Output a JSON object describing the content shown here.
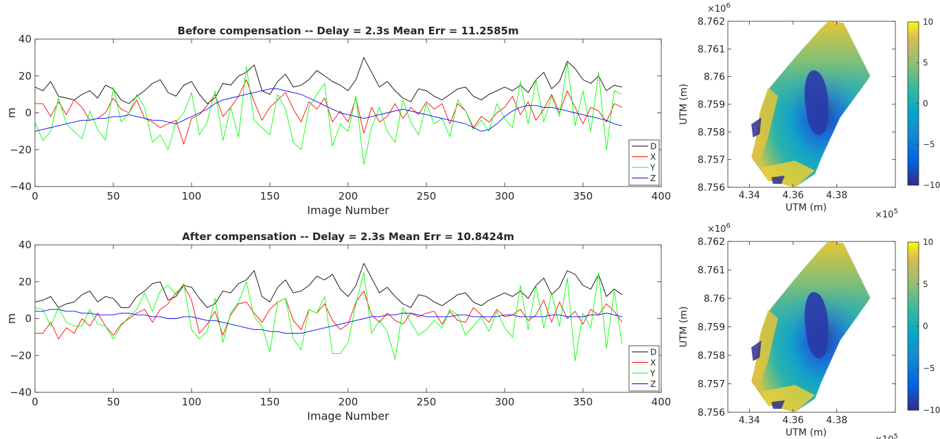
{
  "chart_data": [
    {
      "type": "line",
      "title": "Before compensation -- Delay = 2.3s Mean Err = 11.2585m",
      "xlabel": "Image Number",
      "ylabel": "m",
      "xlim": [
        0,
        400
      ],
      "ylim": [
        -40,
        40
      ],
      "xticks": [
        0,
        50,
        100,
        150,
        200,
        250,
        300,
        350,
        400
      ],
      "yticks": [
        -40,
        -20,
        0,
        20,
        40
      ],
      "legend_position": "bottom-right",
      "grid": false,
      "x": [
        0,
        5,
        10,
        15,
        20,
        25,
        30,
        35,
        40,
        45,
        50,
        55,
        60,
        65,
        70,
        75,
        80,
        85,
        90,
        95,
        100,
        105,
        110,
        115,
        120,
        125,
        130,
        135,
        140,
        145,
        150,
        155,
        160,
        165,
        170,
        175,
        180,
        185,
        190,
        195,
        200,
        205,
        210,
        215,
        220,
        225,
        230,
        235,
        240,
        245,
        250,
        255,
        260,
        265,
        270,
        275,
        280,
        285,
        290,
        295,
        300,
        305,
        310,
        315,
        320,
        325,
        330,
        335,
        340,
        345,
        350,
        355,
        360,
        365,
        370,
        375
      ],
      "series": [
        {
          "name": "D",
          "color": "#000000",
          "values": [
            14,
            12,
            17,
            9,
            8,
            7,
            10,
            12,
            8,
            15,
            13,
            7,
            5,
            9,
            12,
            16,
            18,
            11,
            9,
            15,
            17,
            10,
            5,
            8,
            16,
            15,
            20,
            22,
            26,
            12,
            10,
            17,
            21,
            14,
            15,
            18,
            23,
            20,
            17,
            15,
            12,
            18,
            30,
            22,
            14,
            17,
            12,
            8,
            6,
            13,
            12,
            9,
            7,
            10,
            13,
            14,
            9,
            7,
            10,
            12,
            14,
            12,
            15,
            11,
            18,
            22,
            13,
            17,
            28,
            24,
            18,
            16,
            20,
            12,
            15,
            14
          ]
        },
        {
          "name": "X",
          "color": "#ff0000",
          "values": [
            5,
            5,
            -2,
            6,
            -1,
            7,
            3,
            -4,
            -3,
            0,
            8,
            2,
            0,
            7,
            -3,
            -5,
            -8,
            -6,
            -4,
            -17,
            -3,
            -1,
            4,
            10,
            -2,
            3,
            9,
            18,
            6,
            -4,
            3,
            7,
            11,
            2,
            -5,
            6,
            2,
            8,
            -5,
            1,
            -5,
            8,
            -11,
            3,
            -5,
            -2,
            5,
            -3,
            3,
            -1,
            6,
            2,
            5,
            -6,
            5,
            1,
            -8,
            -2,
            -5,
            0,
            3,
            9,
            -1,
            6,
            -4,
            2,
            10,
            0,
            12,
            3,
            -6,
            3,
            1,
            -5,
            5,
            3
          ]
        },
        {
          "name": "Y",
          "color": "#00ff00",
          "values": [
            -5,
            -15,
            -10,
            8,
            -6,
            -10,
            -14,
            1,
            -9,
            -15,
            14,
            -5,
            0,
            10,
            3,
            -16,
            -12,
            -20,
            -5,
            0,
            11,
            -12,
            -5,
            12,
            -15,
            3,
            -13,
            25,
            -4,
            -8,
            -12,
            10,
            2,
            -16,
            -20,
            3,
            10,
            16,
            -18,
            -6,
            -10,
            9,
            -28,
            -8,
            3,
            -10,
            -16,
            7,
            -5,
            -12,
            5,
            -6,
            -3,
            -13,
            7,
            1,
            -9,
            -4,
            -10,
            5,
            -3,
            -8,
            17,
            -6,
            18,
            -5,
            9,
            -2,
            27,
            -7,
            12,
            -10,
            22,
            -20,
            12,
            10
          ]
        },
        {
          "name": "Z",
          "color": "#0000ff",
          "values": [
            -10,
            -9,
            -8,
            -7,
            -6,
            -5,
            -4,
            -4,
            -3,
            -3,
            -2,
            -2,
            -1,
            -2,
            -3,
            -4,
            -4,
            -5,
            -6,
            -4,
            -2,
            0,
            2,
            5,
            7,
            8,
            9,
            10,
            11,
            12,
            13,
            13,
            12,
            11,
            10,
            8,
            6,
            4,
            2,
            0,
            -1,
            -2,
            -3,
            -2,
            -1,
            0,
            1,
            2,
            1,
            0,
            -1,
            -2,
            -3,
            -4,
            -5,
            -6,
            -8,
            -10,
            -9,
            -6,
            -2,
            1,
            3,
            4,
            4,
            3,
            3,
            2,
            1,
            0,
            -1,
            -2,
            -3,
            -4,
            -6,
            -7
          ]
        }
      ]
    },
    {
      "type": "line",
      "title": "After compensation -- Delay = 2.3s Mean Err = 10.8424m",
      "xlabel": "Image Number",
      "ylabel": "m",
      "xlim": [
        0,
        400
      ],
      "ylim": [
        -40,
        40
      ],
      "xticks": [
        0,
        50,
        100,
        150,
        200,
        250,
        300,
        350,
        400
      ],
      "yticks": [
        -40,
        -20,
        0,
        20,
        40
      ],
      "legend_position": "bottom-right",
      "grid": false,
      "x": [
        0,
        5,
        10,
        15,
        20,
        25,
        30,
        35,
        40,
        45,
        50,
        55,
        60,
        65,
        70,
        75,
        80,
        85,
        90,
        95,
        100,
        105,
        110,
        115,
        120,
        125,
        130,
        135,
        140,
        145,
        150,
        155,
        160,
        165,
        170,
        175,
        180,
        185,
        190,
        195,
        200,
        205,
        210,
        215,
        220,
        225,
        230,
        235,
        240,
        245,
        250,
        255,
        260,
        265,
        270,
        275,
        280,
        285,
        290,
        295,
        300,
        305,
        310,
        315,
        320,
        325,
        330,
        335,
        340,
        345,
        350,
        355,
        360,
        365,
        370,
        375
      ],
      "series": [
        {
          "name": "D",
          "color": "#000000",
          "values": [
            9,
            10,
            12,
            6,
            8,
            9,
            13,
            15,
            9,
            12,
            11,
            6,
            6,
            12,
            15,
            19,
            20,
            10,
            12,
            18,
            17,
            11,
            6,
            8,
            15,
            14,
            19,
            21,
            26,
            12,
            9,
            17,
            21,
            14,
            15,
            18,
            23,
            21,
            24,
            16,
            12,
            18,
            30,
            22,
            14,
            17,
            12,
            8,
            6,
            13,
            12,
            9,
            7,
            10,
            13,
            14,
            9,
            7,
            10,
            12,
            14,
            12,
            15,
            11,
            18,
            22,
            13,
            17,
            26,
            24,
            18,
            16,
            24,
            12,
            16,
            13
          ]
        },
        {
          "name": "X",
          "color": "#ff0000",
          "values": [
            -8,
            -8,
            -2,
            -11,
            -5,
            -8,
            0,
            -4,
            3,
            -4,
            -9,
            -3,
            0,
            3,
            5,
            -2,
            5,
            8,
            14,
            18,
            10,
            -8,
            -3,
            4,
            -9,
            2,
            8,
            9,
            3,
            -2,
            5,
            9,
            11,
            -1,
            -6,
            5,
            3,
            8,
            -1,
            -6,
            -3,
            9,
            15,
            2,
            -2,
            3,
            -1,
            -3,
            3,
            1,
            3,
            4,
            -3,
            4,
            -1,
            -2,
            6,
            2,
            -2,
            5,
            1,
            2,
            5,
            -1,
            2,
            10,
            -2,
            9,
            0,
            4,
            -3,
            5,
            2,
            8,
            4,
            -2
          ]
        },
        {
          "name": "Y",
          "color": "#00ff00",
          "values": [
            6,
            5,
            -4,
            6,
            -2,
            -4,
            -4,
            5,
            -3,
            -4,
            -11,
            -4,
            1,
            5,
            14,
            4,
            15,
            18,
            13,
            19,
            -6,
            -11,
            -7,
            11,
            -13,
            3,
            9,
            20,
            1,
            -4,
            -18,
            9,
            11,
            -11,
            -17,
            5,
            3,
            12,
            -19,
            -19,
            -13,
            8,
            25,
            -8,
            -1,
            -7,
            -22,
            6,
            -2,
            -9,
            -6,
            -1,
            -5,
            5,
            2,
            -9,
            -4,
            1,
            -7,
            4,
            -5,
            -10,
            18,
            -6,
            18,
            -5,
            14,
            -4,
            22,
            -23,
            3,
            -5,
            25,
            -16,
            15,
            -14
          ]
        },
        {
          "name": "Z",
          "color": "#0000ff",
          "values": [
            4,
            4,
            5,
            5,
            4,
            4,
            3,
            3,
            2,
            2,
            2,
            3,
            3,
            2,
            2,
            1,
            1,
            0,
            0,
            1,
            1,
            0,
            -1,
            -1,
            -2,
            -3,
            -4,
            -5,
            -6,
            -6,
            -7,
            -7,
            -8,
            -8,
            -8,
            -7,
            -6,
            -5,
            -4,
            -3,
            -2,
            -1,
            0,
            1,
            1,
            2,
            2,
            3,
            3,
            2,
            1,
            1,
            1,
            1,
            2,
            2,
            1,
            1,
            1,
            1,
            2,
            2,
            1,
            1,
            1,
            1,
            2,
            2,
            1,
            1,
            1,
            2,
            2,
            3,
            2,
            1
          ]
        }
      ]
    },
    {
      "type": "heatmap",
      "xlabel": "UTM (m)",
      "ylabel": "UTM (m)",
      "x_exponent_label": "×10",
      "x_exponent_power": "5",
      "y_exponent_label": "×10",
      "y_exponent_power": "6",
      "xticks": [
        "4.34",
        "4.36",
        "4.38"
      ],
      "yticks": [
        "8.762",
        "8.761",
        "8.76",
        "8.759",
        "8.758",
        "8.757",
        "8.756"
      ],
      "colorbar_ticks": [
        "10",
        "5",
        "0",
        "−5",
        "−10"
      ],
      "clim": [
        -10,
        10
      ],
      "colormap": "parula"
    },
    {
      "type": "heatmap",
      "xlabel": "UTM (m)",
      "ylabel": "UTM (m)",
      "x_exponent_label": "×10",
      "x_exponent_power": "5",
      "y_exponent_label": "×10",
      "y_exponent_power": "6",
      "xticks": [
        "4.34",
        "4.36",
        "4.38"
      ],
      "yticks": [
        "8.762",
        "8.761",
        "8.76",
        "8.759",
        "8.758",
        "8.757",
        "8.756"
      ],
      "colorbar_ticks": [
        "10",
        "5",
        "0",
        "−5",
        "−10"
      ],
      "clim": [
        -10,
        10
      ],
      "colormap": "parula"
    }
  ]
}
